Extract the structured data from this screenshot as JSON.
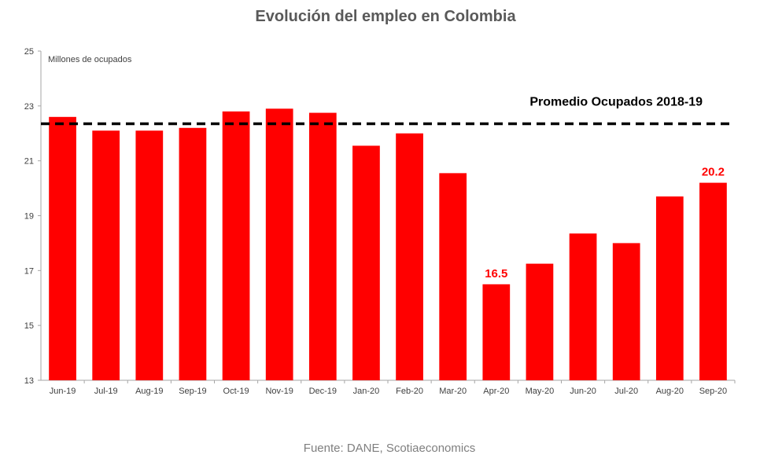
{
  "chart_data": {
    "type": "bar",
    "title": "Evolución del empleo en Colombia",
    "ylabel": "Millones de ocupados",
    "xlabel": "",
    "ylim": [
      13,
      25
    ],
    "yticks": [
      "13",
      "15",
      "17",
      "19",
      "21",
      "23",
      "25"
    ],
    "categories": [
      "Jun-19",
      "Jul-19",
      "Aug-19",
      "Sep-19",
      "Oct-19",
      "Nov-19",
      "Dec-19",
      "Jan-20",
      "Feb-20",
      "Mar-20",
      "Apr-20",
      "May-20",
      "Jun-20",
      "Jul-20",
      "Aug-20",
      "Sep-20"
    ],
    "values": [
      22.6,
      22.1,
      22.1,
      22.2,
      22.8,
      22.9,
      22.75,
      21.55,
      22.0,
      20.55,
      16.5,
      17.25,
      18.35,
      18.0,
      19.7,
      20.2
    ],
    "bar_color": "#ff0000",
    "data_labels": [
      {
        "category": "Apr-20",
        "text": "16.5"
      },
      {
        "category": "Sep-20",
        "text": "20.2"
      }
    ],
    "reference_line": {
      "label": "Promedio Ocupados 2018-19",
      "value": 22.35,
      "style": "dashed",
      "color": "#000000"
    },
    "grid": false,
    "legend": "none"
  },
  "footer": {
    "source": "Fuente: DANE, Scotiaeconomics"
  }
}
